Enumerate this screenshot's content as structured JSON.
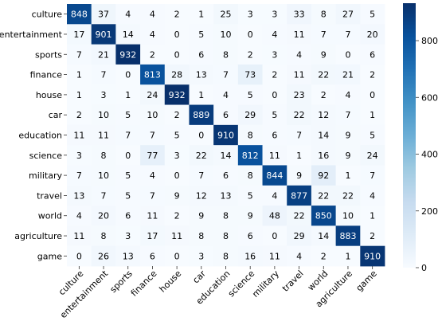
{
  "chart_data": {
    "type": "heatmap",
    "title": "",
    "xlabel": "",
    "ylabel": "",
    "labels": [
      "culture",
      "entertainment",
      "sports",
      "finance",
      "house",
      "car",
      "education",
      "science",
      "military",
      "travel",
      "world",
      "agriculture",
      "game"
    ],
    "matrix": [
      [
        848,
        37,
        4,
        4,
        2,
        1,
        25,
        3,
        3,
        33,
        8,
        27,
        5
      ],
      [
        17,
        901,
        14,
        4,
        0,
        5,
        10,
        0,
        4,
        11,
        7,
        7,
        20
      ],
      [
        7,
        21,
        932,
        2,
        0,
        6,
        8,
        2,
        3,
        4,
        9,
        0,
        6
      ],
      [
        1,
        7,
        0,
        813,
        28,
        13,
        7,
        73,
        2,
        11,
        22,
        21,
        2
      ],
      [
        1,
        3,
        1,
        24,
        932,
        1,
        4,
        5,
        0,
        23,
        2,
        4,
        0
      ],
      [
        2,
        10,
        5,
        10,
        2,
        889,
        6,
        29,
        5,
        22,
        12,
        7,
        1
      ],
      [
        11,
        11,
        7,
        7,
        5,
        0,
        910,
        8,
        6,
        7,
        14,
        9,
        5
      ],
      [
        3,
        8,
        0,
        77,
        3,
        22,
        14,
        812,
        11,
        1,
        16,
        9,
        24
      ],
      [
        7,
        10,
        5,
        4,
        0,
        7,
        6,
        8,
        844,
        9,
        92,
        1,
        7
      ],
      [
        13,
        7,
        5,
        7,
        9,
        12,
        13,
        5,
        4,
        877,
        22,
        22,
        4
      ],
      [
        4,
        20,
        6,
        11,
        2,
        9,
        8,
        9,
        48,
        22,
        850,
        10,
        1
      ],
      [
        11,
        8,
        3,
        17,
        11,
        8,
        8,
        6,
        0,
        29,
        14,
        883,
        2
      ],
      [
        0,
        26,
        13,
        6,
        0,
        3,
        8,
        16,
        11,
        4,
        2,
        1,
        910
      ]
    ],
    "colorbar": {
      "min": 0,
      "max": 932,
      "ticks": [
        0,
        200,
        400,
        600,
        800
      ]
    },
    "colormap": [
      "#f7fbff",
      "#deebf7",
      "#c6dbef",
      "#9ecae1",
      "#6baed6",
      "#4292c6",
      "#2171b5",
      "#08519c",
      "#08306b"
    ]
  }
}
